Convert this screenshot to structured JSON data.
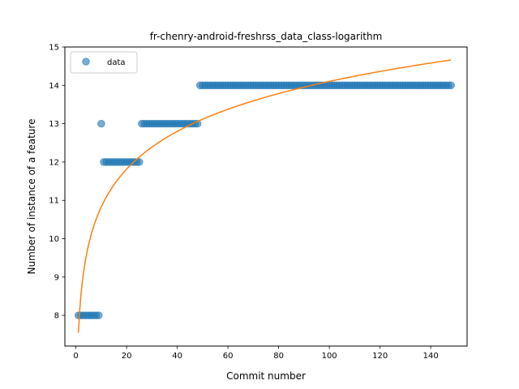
{
  "chart_data": {
    "type": "scatter",
    "title": "fr-chenry-android-freshrss_data_class-logarithm",
    "xlabel": "Commit number",
    "ylabel": "Number of instance of a feature",
    "xlim": [
      -4.35,
      154.35
    ],
    "ylim": [
      7.2,
      15.0
    ],
    "xticks": [
      0,
      20,
      40,
      60,
      80,
      100,
      120,
      140
    ],
    "yticks": [
      8,
      9,
      10,
      11,
      12,
      13,
      14,
      15
    ],
    "grid": false,
    "legend": {
      "placement": "top-left",
      "entries": [
        "data"
      ]
    },
    "series": [
      {
        "name": "data",
        "kind": "scatter",
        "color": "#1f77b4",
        "segments": [
          {
            "x_from": 1,
            "x_to": 9,
            "y": 8
          },
          {
            "x_from": 10,
            "x_to": 10,
            "y": 13
          },
          {
            "x_from": 11,
            "x_to": 25,
            "y": 12
          },
          {
            "x_from": 26,
            "x_to": 48,
            "y": 13
          },
          {
            "x_from": 49,
            "x_to": 148,
            "y": 14
          }
        ]
      },
      {
        "name": "",
        "kind": "line",
        "color": "#ff7f0e",
        "function": "log",
        "a": 7.55,
        "b": 1.423,
        "x_from": 1,
        "x_to": 148
      }
    ]
  }
}
